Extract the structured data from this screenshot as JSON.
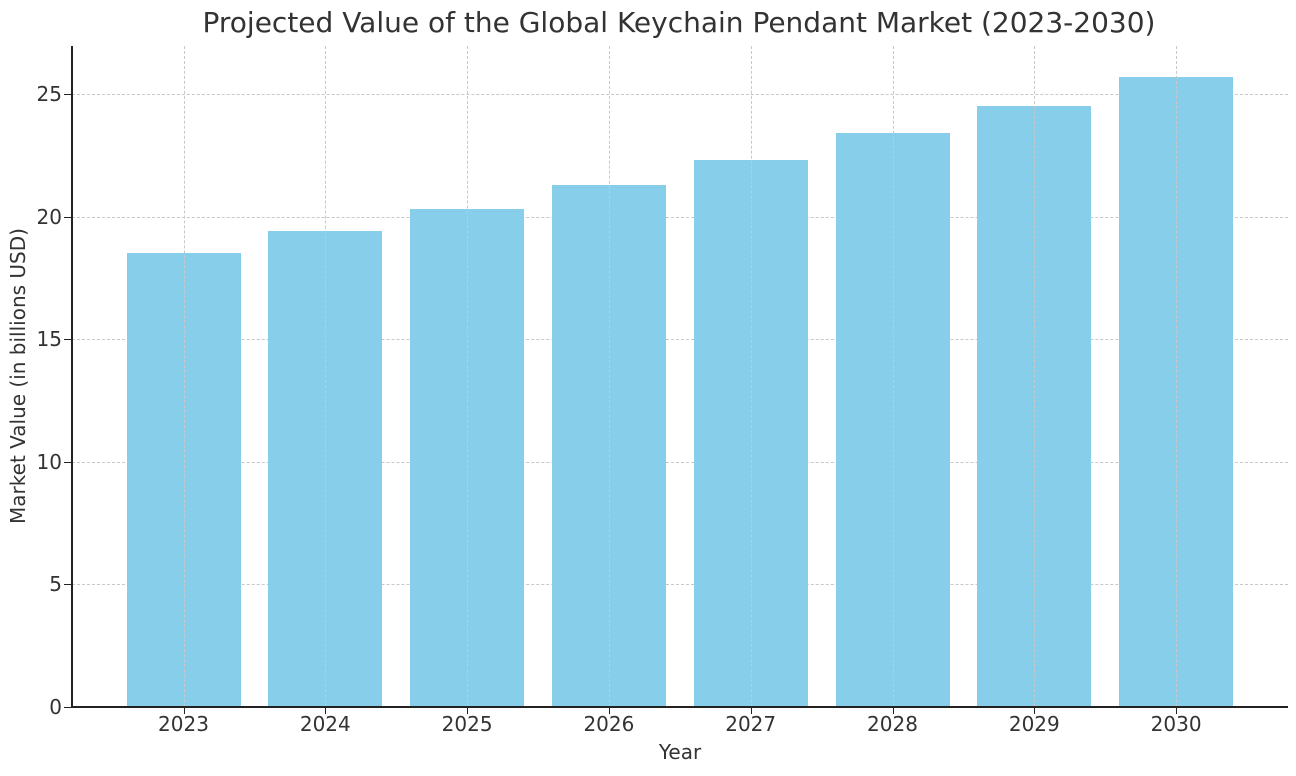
{
  "chart_data": {
    "type": "bar",
    "title": "Projected Value of the Global Keychain Pendant Market (2023-2030)",
    "xlabel": "Year",
    "ylabel": "Market Value (in billions USD)",
    "categories": [
      "2023",
      "2024",
      "2025",
      "2026",
      "2027",
      "2028",
      "2029",
      "2030"
    ],
    "values": [
      18.5,
      19.4,
      20.3,
      21.3,
      22.3,
      23.4,
      24.5,
      25.7
    ],
    "ylim": [
      0,
      27
    ],
    "yticks": [
      0,
      5,
      10,
      15,
      20,
      25
    ],
    "grid": true,
    "bar_color": "#87ceeb"
  }
}
